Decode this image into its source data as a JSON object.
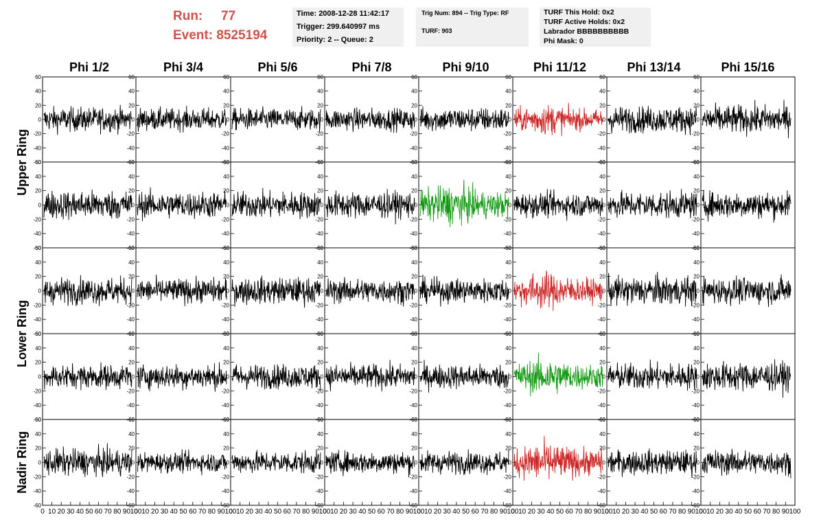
{
  "header": {
    "run_label": "Run:",
    "run_value": "77",
    "event_label": "Event:",
    "event_value": "8525194"
  },
  "info_box_1": {
    "time": "Time: 2008-12-28 11:42:17",
    "trigger": "Trigger: 299.640997 ms",
    "priority": "Priority: 2 -- Queue: 2"
  },
  "info_box_2": {
    "trig": "Trig Num: 894 -- Trig Type: RF",
    "turf": "TURF: 903"
  },
  "info_box_3": {
    "this_hold": "TURF This Hold: 0x2",
    "active_holds": "TURF Active Holds: 0x2",
    "labrador": "Labrador BBBBBBBBBB",
    "phi_mask": "Phi Mask: 0"
  },
  "colors": {
    "normal": "#000000",
    "triggered": "#cc2222",
    "highlight": "#119911",
    "header_text": "#d0504a",
    "info_bg": "#f0f0f0"
  },
  "chart_data": {
    "type": "line",
    "columns": [
      "Phi 1/2",
      "Phi 3/4",
      "Phi 5/6",
      "Phi 7/8",
      "Phi 9/10",
      "Phi 11/12",
      "Phi 13/14",
      "Phi 15/16"
    ],
    "row_labels": [
      "Upper Ring",
      "Lower Ring",
      "Nadir Ring"
    ],
    "ylim": [
      -60,
      60
    ],
    "yticks": [
      "60",
      "40",
      "20",
      "0",
      "-20",
      "-40",
      "-60"
    ],
    "xlim": [
      0,
      100
    ],
    "xticks": [
      "0",
      "10",
      "20",
      "30",
      "40",
      "50",
      "60",
      "70",
      "80",
      "90",
      "100"
    ],
    "samples_per_trace": 260,
    "trace_amplitude": [
      [
        11,
        10,
        10,
        10,
        11,
        10,
        12,
        13
      ],
      [
        13,
        12,
        12,
        12,
        13,
        11,
        12,
        12
      ],
      [
        12,
        11,
        12,
        11,
        11,
        12,
        13,
        12
      ],
      [
        11,
        11,
        11,
        11,
        11,
        12,
        12,
        13
      ],
      [
        12,
        9,
        10,
        10,
        10,
        13,
        11,
        11
      ]
    ],
    "trace_color": [
      [
        "normal",
        "normal",
        "normal",
        "normal",
        "normal",
        "triggered",
        "normal",
        "normal"
      ],
      [
        "normal",
        "normal",
        "normal",
        "normal",
        "highlight",
        "normal",
        "normal",
        "normal"
      ],
      [
        "normal",
        "normal",
        "normal",
        "normal",
        "normal",
        "triggered",
        "normal",
        "normal"
      ],
      [
        "normal",
        "normal",
        "normal",
        "normal",
        "normal",
        "highlight",
        "normal",
        "normal"
      ],
      [
        "normal",
        "normal",
        "normal",
        "normal",
        "normal",
        "triggered",
        "normal",
        "normal"
      ]
    ]
  }
}
